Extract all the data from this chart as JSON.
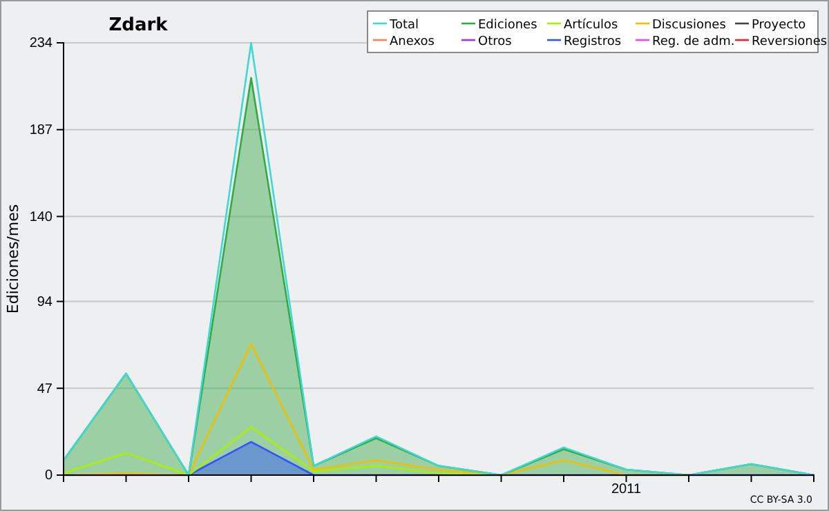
{
  "chart_data": {
    "type": "line",
    "title": "Zdark",
    "ylabel": "Ediciones/mes",
    "categories": [
      null,
      null,
      null,
      null,
      null,
      null,
      null,
      null,
      null,
      "2011",
      null,
      null,
      null
    ],
    "ylim": [
      0,
      234
    ],
    "yticks": [
      0,
      47,
      94,
      140,
      187,
      234
    ],
    "grid": "y",
    "legend": "top right",
    "annotations": [
      "CC BY-SA 3.0"
    ],
    "series": [
      {
        "name": "Total",
        "type": "line",
        "color": "#40d8d0",
        "values": [
          8,
          55,
          0,
          234,
          5,
          21,
          5,
          0,
          15,
          3,
          0,
          6,
          0
        ]
      },
      {
        "name": "Ediciones",
        "type": "area",
        "color": "#33aa44",
        "values": [
          8,
          55,
          0,
          215,
          5,
          20,
          5,
          0,
          14,
          3,
          0,
          6,
          0
        ]
      },
      {
        "name": "Artículos",
        "type": "line",
        "color": "#aaee00",
        "values": [
          1,
          12,
          0,
          26,
          2,
          5,
          1,
          0,
          null,
          null,
          null,
          null,
          null
        ]
      },
      {
        "name": "Discusiones",
        "type": "line",
        "color": "#f0c000",
        "values": [
          0,
          1,
          0,
          71,
          3,
          8,
          3,
          0,
          8,
          0,
          0,
          null,
          null
        ]
      },
      {
        "name": "Proyecto",
        "type": "line",
        "color": "#444444",
        "values": [
          null,
          null,
          null,
          null,
          null,
          null,
          null,
          null,
          null,
          null,
          null,
          null,
          null
        ]
      },
      {
        "name": "Anexos",
        "type": "line",
        "color": "#ff7f50",
        "values": [
          null,
          null,
          null,
          null,
          null,
          null,
          null,
          null,
          null,
          null,
          null,
          null,
          null
        ]
      },
      {
        "name": "Otros",
        "type": "line",
        "color": "#9933ee",
        "values": [
          null,
          null,
          null,
          null,
          null,
          null,
          null,
          null,
          null,
          null,
          null,
          null,
          null
        ]
      },
      {
        "name": "Registros",
        "type": "area",
        "color": "#3355ff",
        "values": [
          0,
          0,
          0,
          18,
          0,
          0,
          0,
          0,
          0,
          0,
          0,
          0,
          0
        ]
      },
      {
        "name": "Reg. de adm.",
        "type": "line",
        "color": "#ee44ee",
        "values": [
          null,
          null,
          null,
          null,
          null,
          null,
          null,
          null,
          null,
          null,
          null,
          null,
          null
        ]
      },
      {
        "name": "Reversiones",
        "type": "line",
        "color": "#ee2222",
        "values": [
          null,
          null,
          null,
          null,
          null,
          null,
          null,
          null,
          null,
          null,
          null,
          null,
          null
        ]
      }
    ]
  }
}
